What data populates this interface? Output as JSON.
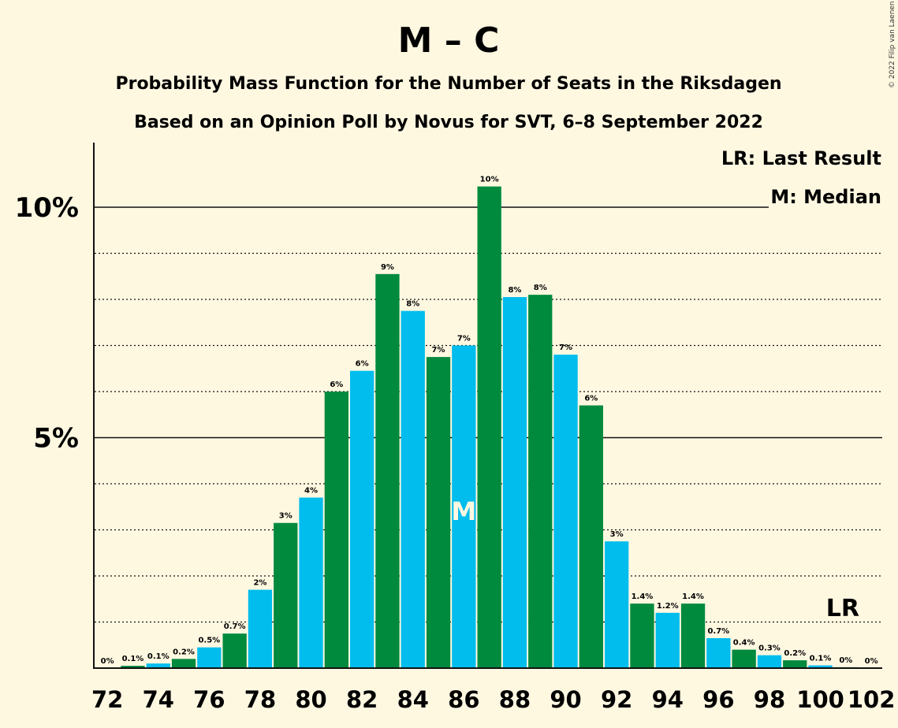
{
  "title": "M – C",
  "subtitle": "Probability Mass Function for the Number of Seats in the Riksdagen",
  "subtitle2": "Based on an Opinion Poll by Novus for SVT, 6–8 September 2022",
  "copyright": "© 2022 Filip van Laenen",
  "legend": {
    "lr": "LR: Last Result",
    "m": "M: Median"
  },
  "colors": {
    "background": "#fff8e1",
    "green": "#008a3e",
    "blue": "#00bdee"
  },
  "chart_data": {
    "type": "bar",
    "xlabel": "",
    "ylabel": "",
    "ylim": [
      0,
      11.5
    ],
    "grid": true,
    "legend_position": "top-right",
    "categories": [
      72,
      73,
      74,
      75,
      76,
      77,
      78,
      79,
      80,
      81,
      82,
      83,
      84,
      85,
      86,
      87,
      88,
      89,
      90,
      91,
      92,
      93,
      94,
      95,
      96,
      97,
      98,
      99,
      100,
      101,
      102
    ],
    "values": [
      0.0,
      0.05,
      0.1,
      0.2,
      0.45,
      0.75,
      1.7,
      3.15,
      3.7,
      6.0,
      6.45,
      8.55,
      7.75,
      6.75,
      7.0,
      10.45,
      8.05,
      8.1,
      6.8,
      5.7,
      2.75,
      1.4,
      1.2,
      1.4,
      0.65,
      0.4,
      0.28,
      0.17,
      0.06,
      0.02,
      0.0
    ],
    "data_labels": [
      "0%",
      "0.1%",
      "0.1%",
      "0.2%",
      "0.5%",
      "0.7%",
      "2%",
      "3%",
      "4%",
      "6%",
      "6%",
      "9%",
      "8%",
      "7%",
      "7%",
      "10%",
      "8%",
      "8%",
      "7%",
      "6%",
      "3%",
      "1.4%",
      "1.2%",
      "1.4%",
      "0.7%",
      "0.4%",
      "0.3%",
      "0.2%",
      "0.1%",
      "0%",
      "0%"
    ],
    "x_tick_labels": [
      "72",
      "74",
      "76",
      "78",
      "80",
      "82",
      "84",
      "86",
      "88",
      "90",
      "92",
      "94",
      "96",
      "98",
      "100",
      "102"
    ],
    "y_ticks": [
      5,
      10
    ],
    "y_tick_labels": [
      "5%",
      "10%"
    ],
    "median": 86,
    "median_label": "M",
    "last_result": 101,
    "last_result_label": "LR"
  }
}
